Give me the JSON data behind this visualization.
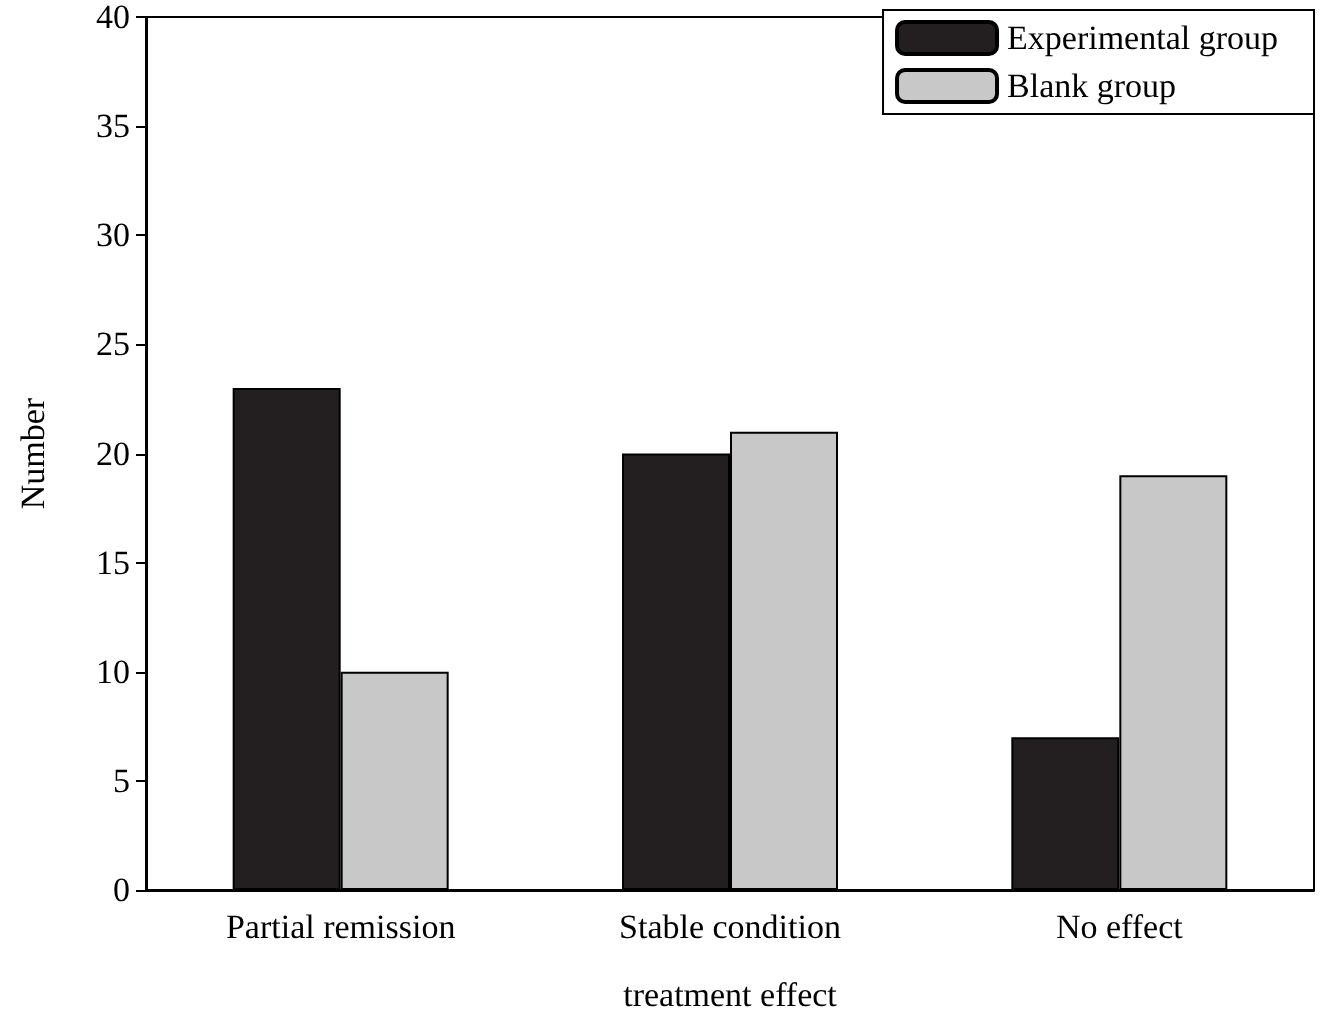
{
  "chart_data": {
    "type": "bar",
    "xlabel": "treatment effect",
    "ylabel": "Number",
    "categories": [
      "Partial remission",
      "Stable condition",
      "No effect"
    ],
    "series": [
      {
        "name": "Experimental group",
        "color": "#231f20",
        "values": [
          23,
          20,
          7
        ]
      },
      {
        "name": "Blank group",
        "color": "#c8c8c8",
        "values": [
          10,
          21,
          19
        ]
      }
    ],
    "ylim": [
      0,
      40
    ],
    "yticks": [
      0,
      5,
      10,
      15,
      20,
      25,
      30,
      35,
      40
    ],
    "grid": false,
    "legend": "top right"
  }
}
